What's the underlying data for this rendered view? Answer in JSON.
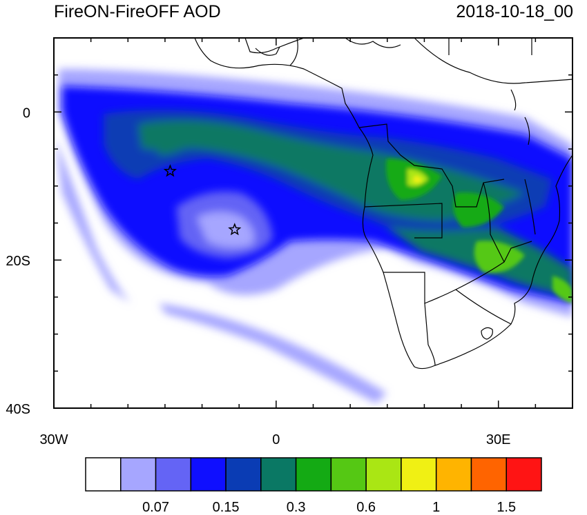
{
  "title_left": "FireON-FireOFF AOD",
  "title_right": "2018-10-18_00",
  "lon_ticks": [
    {
      "value": -30,
      "label": "30W"
    },
    {
      "value": 0,
      "label": "0"
    },
    {
      "value": 30,
      "label": "30E"
    }
  ],
  "lat_ticks": [
    {
      "value": 0,
      "label": "0"
    },
    {
      "value": -20,
      "label": "20S"
    },
    {
      "value": -40,
      "label": "40S"
    }
  ],
  "map_extent": {
    "lon_min": -30,
    "lon_max": 40,
    "lat_min": -40,
    "lat_max": 10
  },
  "star_markers": [
    {
      "lon": -14.3,
      "lat": -8.0
    },
    {
      "lon": -5.6,
      "lat": -15.9
    }
  ],
  "colorbar": {
    "colors": [
      "#ffffff",
      "#a6a6ff",
      "#6464f5",
      "#0f0fff",
      "#0a3cb4",
      "#0a7864",
      "#14aa14",
      "#55c814",
      "#aae614",
      "#f0f014",
      "#ffb400",
      "#ff6400",
      "#ff1414"
    ],
    "labels": [
      {
        "boundary": 2,
        "text": "0.07"
      },
      {
        "boundary": 4,
        "text": "0.15"
      },
      {
        "boundary": 6,
        "text": "0.3"
      },
      {
        "boundary": 8,
        "text": "0.6"
      },
      {
        "boundary": 10,
        "text": "1"
      },
      {
        "boundary": 12,
        "text": "1.5"
      }
    ]
  }
}
